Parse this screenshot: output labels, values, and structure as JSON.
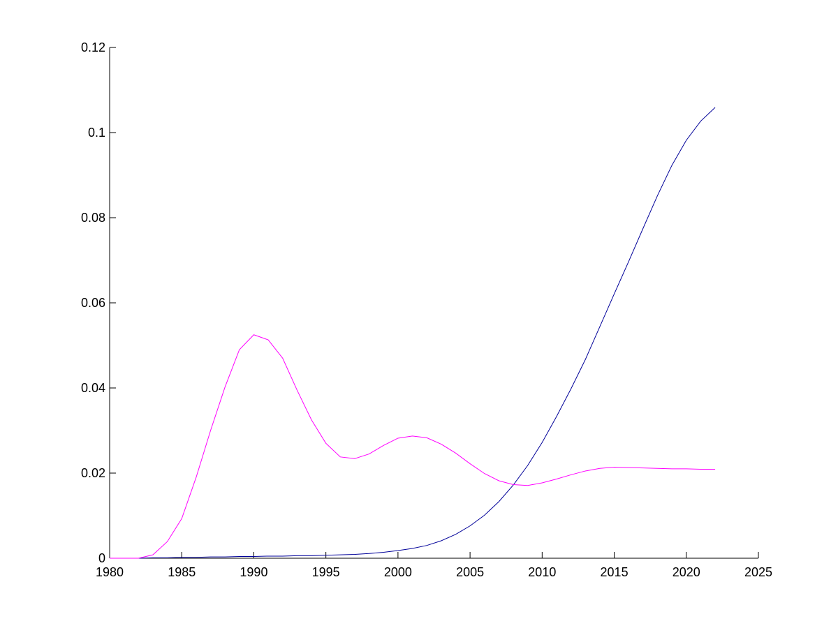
{
  "chart_data": {
    "type": "line",
    "x": [
      1980,
      1981,
      1982,
      1983,
      1984,
      1985,
      1986,
      1987,
      1988,
      1989,
      1990,
      1991,
      1992,
      1993,
      1994,
      1995,
      1996,
      1997,
      1998,
      1999,
      2000,
      2001,
      2002,
      2003,
      2004,
      2005,
      2006,
      2007,
      2008,
      2009,
      2010,
      2011,
      2012,
      2013,
      2014,
      2015,
      2016,
      2017,
      2018,
      2019,
      2020,
      2021,
      2022
    ],
    "series": [
      {
        "color": "#000099",
        "values": [
          0,
          0,
          0,
          0.0001,
          0.0001,
          0.0002,
          0.0002,
          0.0003,
          0.0003,
          0.0004,
          0.0004,
          0.0005,
          0.0005,
          0.0006,
          0.0006,
          0.0007,
          0.0008,
          0.0009,
          0.0011,
          0.0014,
          0.0018,
          0.0023,
          0.003,
          0.0041,
          0.0056,
          0.0076,
          0.0101,
          0.0133,
          0.0172,
          0.0218,
          0.0272,
          0.0333,
          0.0398,
          0.0467,
          0.0544,
          0.0621,
          0.0697,
          0.0775,
          0.0852,
          0.0923,
          0.0982,
          0.1027,
          0.1059
        ]
      },
      {
        "color": "#ff00ff",
        "values": [
          0,
          0,
          0,
          0.0008,
          0.0039,
          0.0093,
          0.019,
          0.03,
          0.0402,
          0.049,
          0.0525,
          0.0513,
          0.047,
          0.0395,
          0.0325,
          0.027,
          0.0238,
          0.0234,
          0.0245,
          0.0265,
          0.0282,
          0.0287,
          0.0283,
          0.0268,
          0.0247,
          0.0222,
          0.0199,
          0.0182,
          0.0173,
          0.0171,
          0.0177,
          0.0186,
          0.0196,
          0.0205,
          0.0211,
          0.0214,
          0.0213,
          0.0212,
          0.0211,
          0.021,
          0.021,
          0.0209,
          0.0209
        ]
      }
    ],
    "xlim": [
      1980,
      2025
    ],
    "xticks": [
      1980,
      1985,
      1990,
      1995,
      2000,
      2005,
      2010,
      2015,
      2020,
      2025
    ],
    "ylim": [
      0,
      0.12
    ],
    "yticks": [
      0,
      0.02,
      0.04,
      0.06,
      0.08,
      0.1,
      0.12
    ]
  }
}
